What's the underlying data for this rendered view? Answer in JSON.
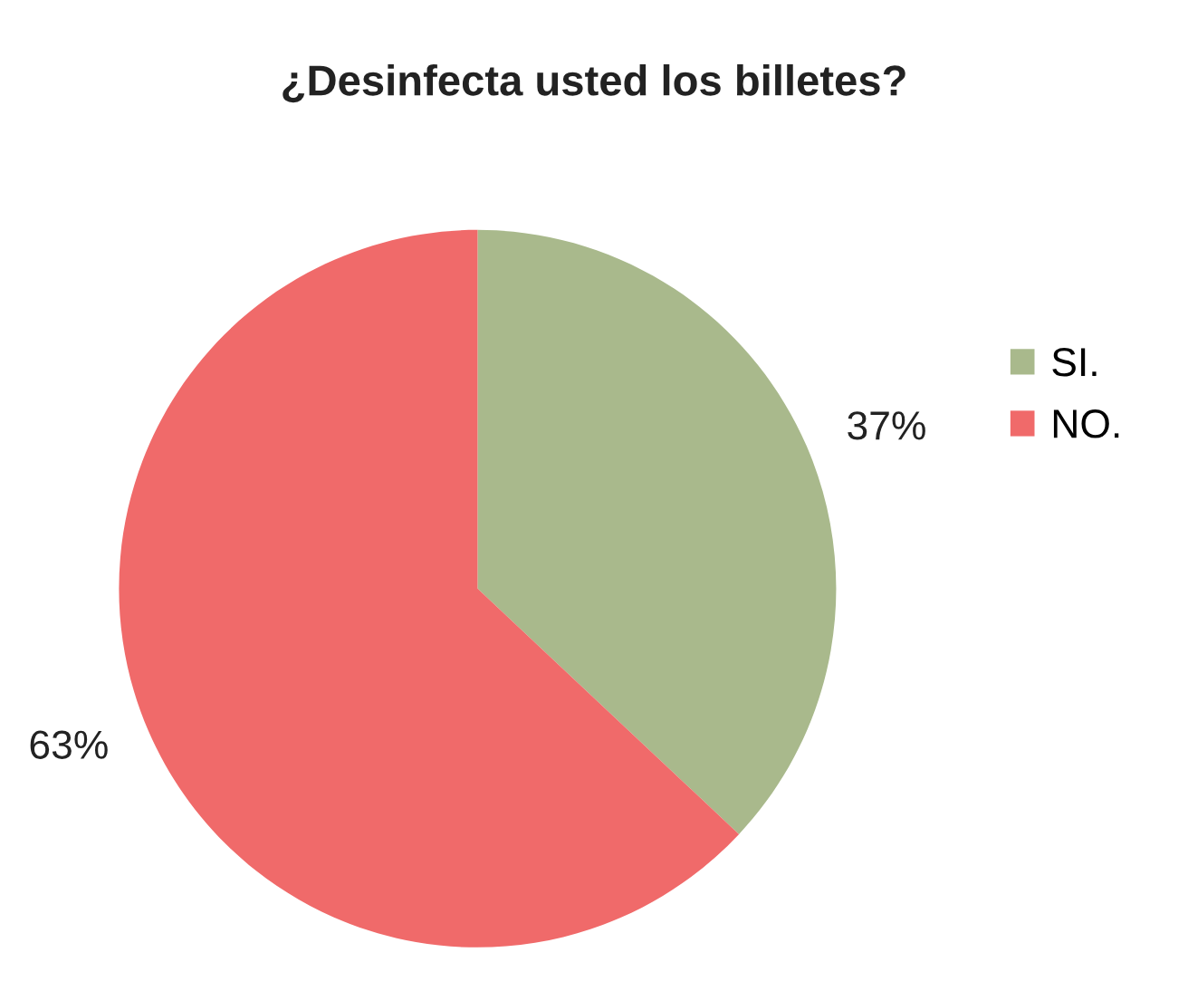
{
  "chart_data": {
    "type": "pie",
    "title": "¿Desinfecta usted los billetes?",
    "categories": [
      "SI.",
      "NO."
    ],
    "values": [
      37,
      63
    ],
    "value_labels": [
      "37%",
      "63%"
    ],
    "colors": [
      "#a9b98c",
      "#f06a6a"
    ],
    "legend": "right"
  }
}
